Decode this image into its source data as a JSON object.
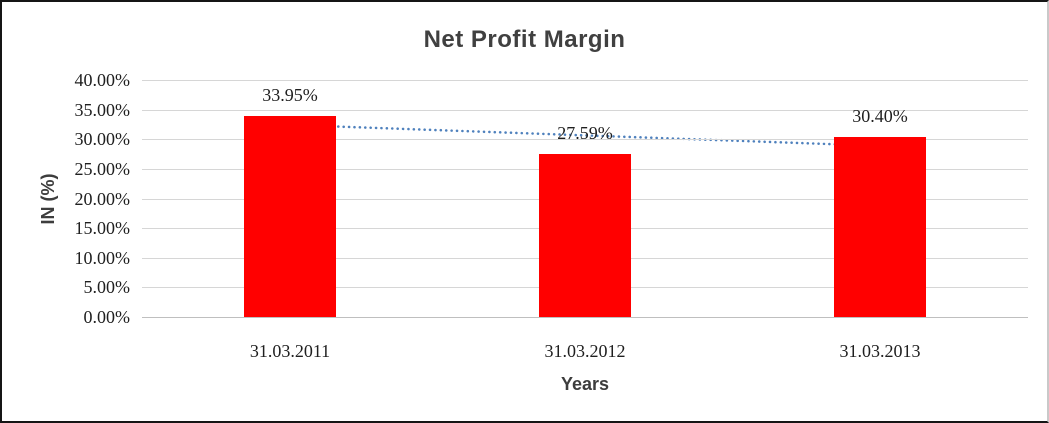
{
  "chart_data": {
    "type": "bar",
    "title": "Net Profit Margin",
    "xlabel": "Years",
    "ylabel": "IN (%)",
    "categories": [
      "31.03.2011",
      "31.03.2012",
      "31.03.2013"
    ],
    "values": [
      33.95,
      27.59,
      30.4
    ],
    "data_labels": [
      "33.95%",
      "27.59%",
      "30.40%"
    ],
    "y_ticks": [
      {
        "value": 40,
        "label": "40.00%"
      },
      {
        "value": 35,
        "label": "35.00%"
      },
      {
        "value": 30,
        "label": "30.00%"
      },
      {
        "value": 25,
        "label": "25.00%"
      },
      {
        "value": 20,
        "label": "20.00%"
      },
      {
        "value": 15,
        "label": "15.00%"
      },
      {
        "value": 10,
        "label": "10.00%"
      },
      {
        "value": 5,
        "label": "5.00%"
      },
      {
        "value": 0,
        "label": "0.00%"
      }
    ],
    "ylim": [
      0,
      40
    ],
    "grid": "horizontal-on",
    "legend": "none",
    "bar_color": "#ff0000",
    "gridline_color": "#d6d6d6",
    "baseline_color": "#bfbfbf",
    "trendline": {
      "type": "linear",
      "style": "dotted",
      "color": "#4f81bd",
      "start_value": 32.43,
      "end_value": 28.88
    }
  }
}
